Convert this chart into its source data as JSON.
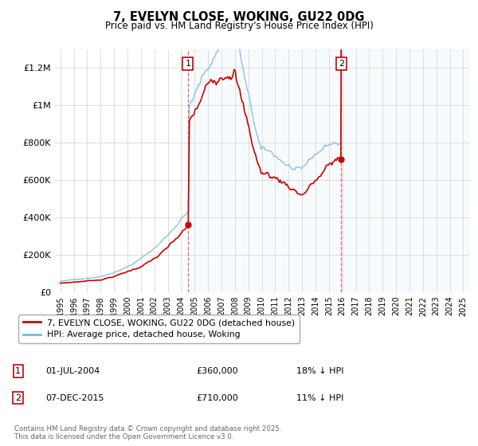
{
  "title_line1": "7, EVELYN CLOSE, WOKING, GU22 0DG",
  "title_line2": "Price paid vs. HM Land Registry's House Price Index (HPI)",
  "hpi_label": "HPI: Average price, detached house, Woking",
  "price_label": "7, EVELYN CLOSE, WOKING, GU22 0DG (detached house)",
  "hpi_color": "#7ab8d9",
  "price_color": "#cc0000",
  "annotation1_date": "01-JUL-2004",
  "annotation1_price": "£360,000",
  "annotation1_hpi": "18% ↓ HPI",
  "annotation2_date": "07-DEC-2015",
  "annotation2_price": "£710,000",
  "annotation2_hpi": "11% ↓ HPI",
  "footer": "Contains HM Land Registry data © Crown copyright and database right 2025.\nThis data is licensed under the Open Government Licence v3.0.",
  "ylim": [
    0,
    1300000
  ],
  "yticks": [
    0,
    200000,
    400000,
    600000,
    800000,
    1000000,
    1200000
  ],
  "ytick_labels": [
    "£0",
    "£200K",
    "£400K",
    "£600K",
    "£800K",
    "£1M",
    "£1.2M"
  ],
  "sale1_year": 2004.5,
  "sale1_value": 360000,
  "sale2_year": 2015.92,
  "sale2_value": 710000
}
